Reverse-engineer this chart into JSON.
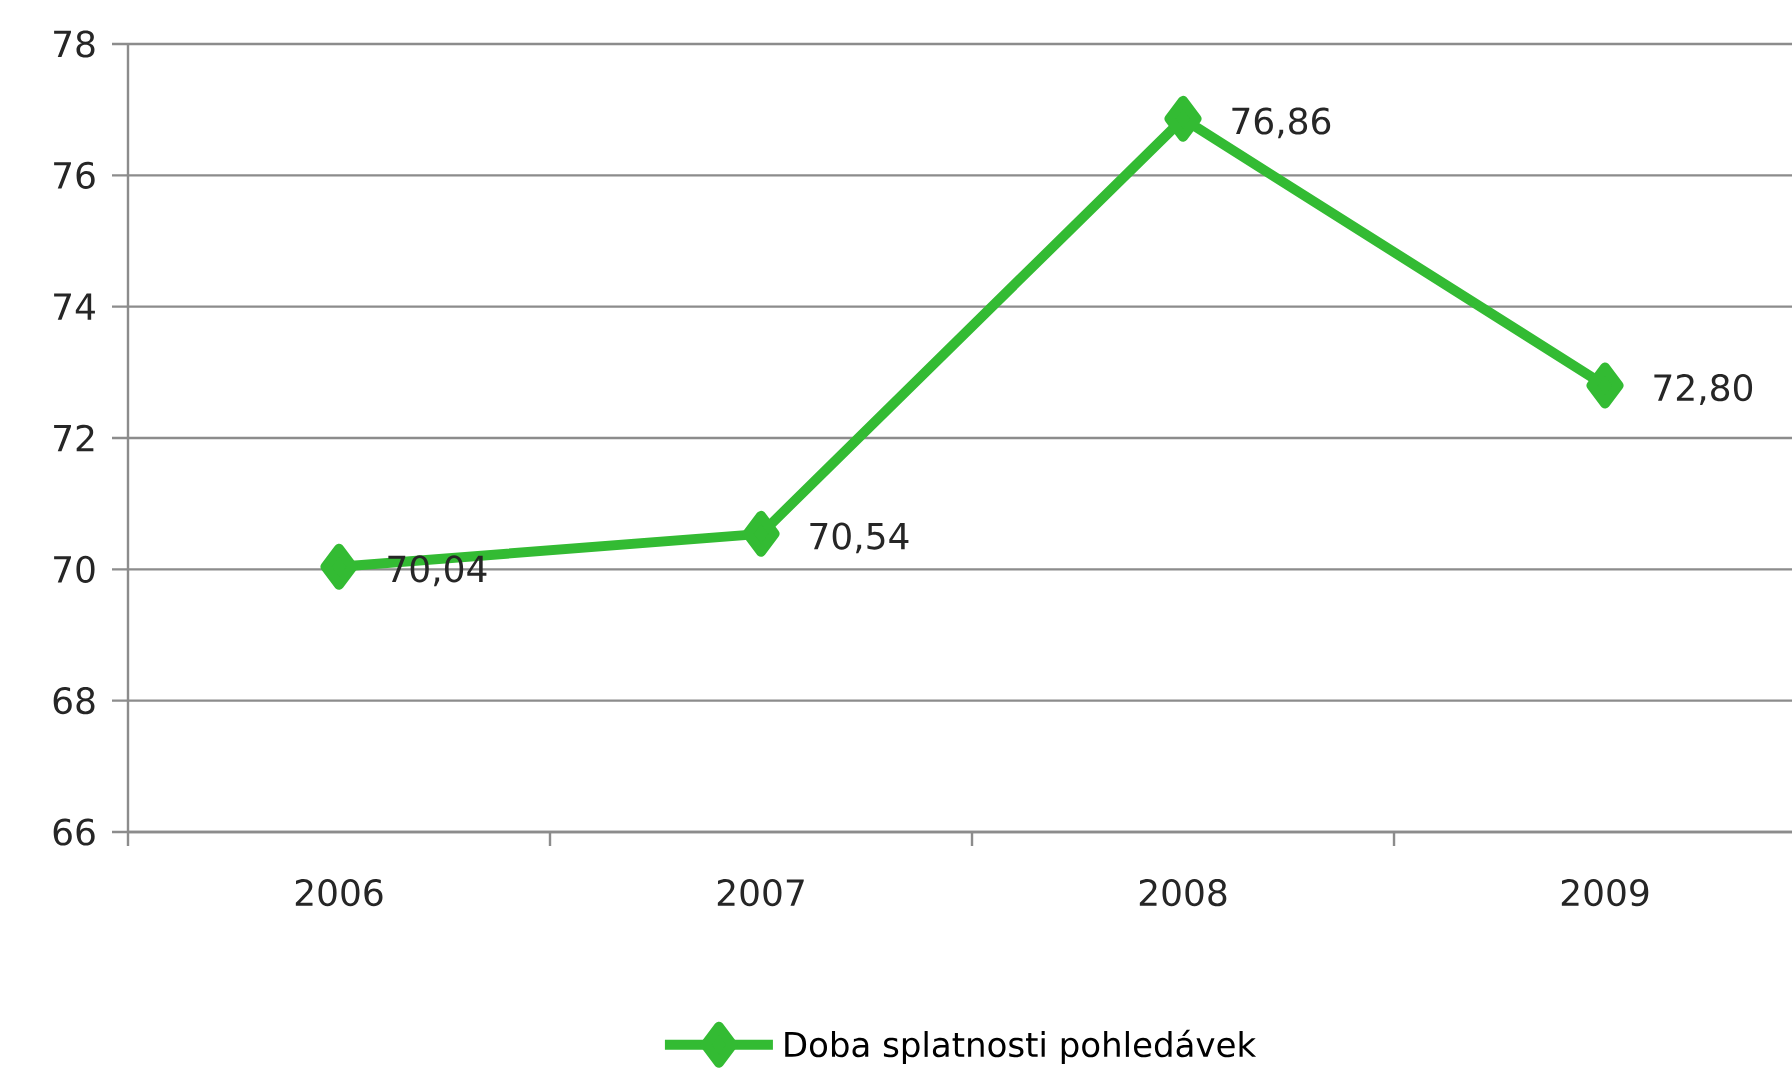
{
  "chart_data": {
    "type": "line",
    "categories": [
      "2006",
      "2007",
      "2008",
      "2009"
    ],
    "series": [
      {
        "name": "Doba splatnosti pohledávek",
        "color": "#33bb33",
        "values": [
          70.04,
          70.54,
          76.86,
          72.8
        ],
        "value_labels": [
          "70,04",
          "70,54",
          "76,86",
          "72,80"
        ]
      }
    ],
    "ylim": [
      66,
      78
    ],
    "yticks": [
      66,
      68,
      70,
      72,
      74,
      76,
      78
    ],
    "grid": "y",
    "legend": "bottom",
    "marker": "diamond",
    "line_style": "solid"
  }
}
